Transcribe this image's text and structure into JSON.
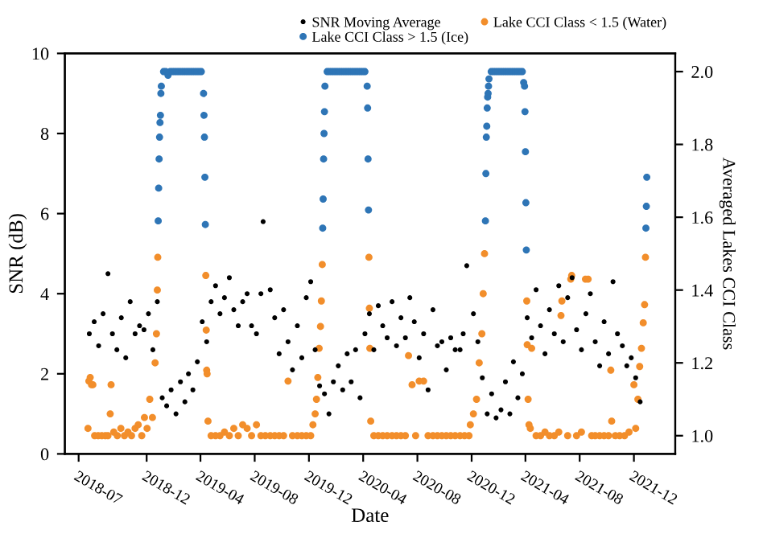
{
  "chart_data": {
    "type": "scatter",
    "xlabel": "Date",
    "ylabel": "SNR (dB)",
    "y2label": "Averaged Lakes CCI Class",
    "xlim": [
      "2018-05-31",
      "2022-03-04"
    ],
    "xticks": [
      {
        "value": "2018-07-01",
        "label": "2018-07"
      },
      {
        "value": "2018-12-01",
        "label": "2018-12"
      },
      {
        "value": "2019-04-01",
        "label": "2019-04"
      },
      {
        "value": "2019-08-01",
        "label": "2019-08"
      },
      {
        "value": "2019-12-01",
        "label": "2019-12"
      },
      {
        "value": "2020-04-01",
        "label": "2020-04"
      },
      {
        "value": "2020-08-01",
        "label": "2020-08"
      },
      {
        "value": "2020-12-01",
        "label": "2020-12"
      },
      {
        "value": "2021-04-01",
        "label": "2021-04"
      },
      {
        "value": "2021-08-01",
        "label": "2021-08"
      },
      {
        "value": "2021-12-01",
        "label": "2021-12"
      }
    ],
    "ylim": [
      0,
      10
    ],
    "yticks": [
      0,
      2,
      4,
      6,
      8,
      10
    ],
    "y2lim": [
      0.95,
      2.05
    ],
    "y2ticks": [
      {
        "value": 1.0,
        "label": "1.0"
      },
      {
        "value": 1.2,
        "label": "1.2"
      },
      {
        "value": 1.4,
        "label": "1.4"
      },
      {
        "value": 1.6,
        "label": "1.6"
      },
      {
        "value": 1.8,
        "label": "1.8"
      },
      {
        "value": 2.0,
        "label": "2.0"
      }
    ],
    "legend": "top right",
    "marker": "circle",
    "grid": false,
    "series": [
      {
        "name": "SNR Moving Average",
        "color": "#000000",
        "x": [
          "2018-07-25",
          "2018-08-05",
          "2018-08-15",
          "2018-08-25",
          "2018-09-05",
          "2018-09-15",
          "2018-09-25",
          "2018-10-05",
          "2018-10-15",
          "2018-10-25",
          "2018-11-05",
          "2018-11-15",
          "2018-11-25",
          "2018-12-05",
          "2018-12-15",
          "2018-12-25",
          "2019-01-05",
          "2019-01-15",
          "2019-01-25",
          "2019-02-05",
          "2019-02-15",
          "2019-02-25",
          "2019-03-05",
          "2019-03-15",
          "2019-03-25",
          "2019-04-05",
          "2019-04-15",
          "2019-04-25",
          "2019-05-05",
          "2019-05-15",
          "2019-05-25",
          "2019-06-05",
          "2019-06-15",
          "2019-06-25",
          "2019-07-05",
          "2019-07-15",
          "2019-07-25",
          "2019-08-05",
          "2019-08-15",
          "2019-08-20",
          "2019-09-05",
          "2019-09-15",
          "2019-09-25",
          "2019-10-05",
          "2019-10-15",
          "2019-10-25",
          "2019-11-05",
          "2019-11-15",
          "2019-11-25",
          "2019-12-05",
          "2019-12-15",
          "2019-12-25",
          "2020-01-05",
          "2020-01-15",
          "2020-01-25",
          "2020-02-05",
          "2020-02-15",
          "2020-02-25",
          "2020-03-05",
          "2020-03-15",
          "2020-03-25",
          "2020-04-05",
          "2020-04-15",
          "2020-04-25",
          "2020-05-05",
          "2020-05-15",
          "2020-05-25",
          "2020-06-05",
          "2020-06-15",
          "2020-06-25",
          "2020-07-05",
          "2020-07-15",
          "2020-07-25",
          "2020-08-05",
          "2020-08-15",
          "2020-08-25",
          "2020-09-05",
          "2020-09-15",
          "2020-09-25",
          "2020-10-05",
          "2020-10-15",
          "2020-10-25",
          "2020-11-05",
          "2020-11-12",
          "2020-11-20",
          "2020-12-05",
          "2020-12-15",
          "2020-12-25",
          "2021-01-05",
          "2021-01-15",
          "2021-01-25",
          "2021-02-05",
          "2021-02-15",
          "2021-02-25",
          "2021-03-05",
          "2021-03-15",
          "2021-03-25",
          "2021-04-05",
          "2021-04-15",
          "2021-04-25",
          "2021-05-05",
          "2021-05-15",
          "2021-05-25",
          "2021-06-05",
          "2021-06-15",
          "2021-06-25",
          "2021-07-05",
          "2021-07-15",
          "2021-07-25",
          "2021-08-05",
          "2021-08-15",
          "2021-08-25",
          "2021-09-05",
          "2021-09-15",
          "2021-09-25",
          "2021-10-05",
          "2021-10-15",
          "2021-10-25",
          "2021-11-05",
          "2021-11-15",
          "2021-11-25",
          "2021-12-05",
          "2021-12-15"
        ],
        "values": [
          3.0,
          3.3,
          2.7,
          3.5,
          4.5,
          3.0,
          2.6,
          3.4,
          2.4,
          3.8,
          3.0,
          3.2,
          3.1,
          3.5,
          2.6,
          3.8,
          1.4,
          1.2,
          1.6,
          1.0,
          1.8,
          1.3,
          2.0,
          1.6,
          2.3,
          3.3,
          2.8,
          3.8,
          4.2,
          3.5,
          3.9,
          4.4,
          3.6,
          3.2,
          3.8,
          4.0,
          3.2,
          3.0,
          4.0,
          5.8,
          4.1,
          3.4,
          2.5,
          3.6,
          2.8,
          2.1,
          3.2,
          2.4,
          3.9,
          4.3,
          2.6,
          1.7,
          1.5,
          1.0,
          1.8,
          2.2,
          1.6,
          2.5,
          1.8,
          2.6,
          1.4,
          3.0,
          3.5,
          2.6,
          3.7,
          3.2,
          2.9,
          3.8,
          2.7,
          3.4,
          2.9,
          3.9,
          3.3,
          2.4,
          3.0,
          1.6,
          3.6,
          2.7,
          2.8,
          2.1,
          2.9,
          2.6,
          2.6,
          3.0,
          4.7,
          3.5,
          2.8,
          1.9,
          1.0,
          1.5,
          0.9,
          1.1,
          1.8,
          1.0,
          2.3,
          1.4,
          2.0,
          3.4,
          2.9,
          4.1,
          3.2,
          2.5,
          3.6,
          3.0,
          4.2,
          2.8,
          3.9,
          4.4,
          3.1,
          2.6,
          3.5,
          4.0,
          2.8,
          2.2,
          3.3,
          2.5,
          4.3,
          3.0,
          2.7,
          2.2,
          2.4,
          1.9,
          1.3
        ]
      },
      {
        "name": "Lake CCI Class > 1.5 (Ice)",
        "color": "#2e75b6",
        "axis": "y2",
        "x": [
          "2018-12-27",
          "2018-12-28",
          "2018-12-29",
          "2018-12-30",
          "2018-12-31",
          "2019-01-01",
          "2019-01-02",
          "2019-01-03",
          "2019-01-08",
          "2019-01-13",
          "2019-01-18",
          "2019-01-23",
          "2019-01-28",
          "2019-02-02",
          "2019-02-07",
          "2019-02-12",
          "2019-02-17",
          "2019-02-22",
          "2019-02-27",
          "2019-03-04",
          "2019-03-09",
          "2019-03-14",
          "2019-03-19",
          "2019-03-24",
          "2019-03-29",
          "2019-04-03",
          "2019-04-08",
          "2019-04-09",
          "2019-04-10",
          "2019-04-11",
          "2019-04-12",
          "2020-01-01",
          "2020-01-02",
          "2020-01-03",
          "2020-01-04",
          "2020-01-05",
          "2020-01-06",
          "2020-01-11",
          "2020-01-16",
          "2020-01-21",
          "2020-01-26",
          "2020-01-31",
          "2020-02-05",
          "2020-02-10",
          "2020-02-15",
          "2020-02-20",
          "2020-02-25",
          "2020-03-01",
          "2020-03-06",
          "2020-03-11",
          "2020-03-16",
          "2020-03-21",
          "2020-03-26",
          "2020-03-31",
          "2020-04-05",
          "2020-04-10",
          "2020-04-11",
          "2020-04-12",
          "2020-04-13",
          "2021-01-01",
          "2021-01-02",
          "2021-01-03",
          "2021-01-04",
          "2021-01-05",
          "2021-01-06",
          "2021-01-07",
          "2021-01-08",
          "2021-01-09",
          "2021-01-14",
          "2021-01-19",
          "2021-01-24",
          "2021-01-29",
          "2021-02-03",
          "2021-02-08",
          "2021-02-13",
          "2021-02-18",
          "2021-02-23",
          "2021-02-28",
          "2021-03-05",
          "2021-03-10",
          "2021-03-15",
          "2021-03-20",
          "2021-03-25",
          "2021-03-28",
          "2021-03-30",
          "2021-03-31",
          "2021-04-01",
          "2021-04-02",
          "2021-04-03",
          "2021-12-28",
          "2021-12-29",
          "2021-12-30"
        ],
        "values": [
          1.59,
          1.68,
          1.76,
          1.82,
          1.86,
          1.88,
          1.94,
          1.96,
          2.0,
          2.0,
          1.99,
          2.0,
          2.0,
          2.0,
          2.0,
          2.0,
          2.0,
          2.0,
          2.0,
          2.0,
          2.0,
          2.0,
          2.0,
          2.0,
          2.0,
          2.0,
          1.94,
          1.88,
          1.82,
          1.71,
          1.58,
          1.57,
          1.65,
          1.76,
          1.83,
          1.89,
          1.96,
          2.0,
          2.0,
          2.0,
          2.0,
          2.0,
          2.0,
          2.0,
          2.0,
          2.0,
          2.0,
          2.0,
          2.0,
          2.0,
          2.0,
          2.0,
          2.0,
          2.0,
          2.0,
          1.96,
          1.9,
          1.76,
          1.62,
          1.59,
          1.72,
          1.82,
          1.85,
          1.9,
          1.93,
          1.94,
          1.96,
          1.98,
          2.0,
          2.0,
          2.0,
          2.0,
          2.0,
          2.0,
          2.0,
          2.0,
          2.0,
          2.0,
          2.0,
          2.0,
          2.0,
          2.0,
          2.0,
          1.97,
          1.96,
          1.89,
          1.78,
          1.64,
          1.51,
          1.57,
          1.63,
          1.71
        ]
      },
      {
        "name": "Lake CCI Class < 1.5 (Water)",
        "color": "#f28e2b",
        "axis": "y2",
        "x": [
          "2018-07-22",
          "2018-07-24",
          "2018-07-27",
          "2018-07-30",
          "2018-08-02",
          "2018-08-06",
          "2018-08-14",
          "2018-08-22",
          "2018-08-30",
          "2018-09-05",
          "2018-09-10",
          "2018-09-12",
          "2018-09-18",
          "2018-09-26",
          "2018-10-04",
          "2018-10-12",
          "2018-10-20",
          "2018-10-28",
          "2018-11-05",
          "2018-11-12",
          "2018-11-20",
          "2018-11-26",
          "2018-12-02",
          "2018-12-08",
          "2018-12-14",
          "2018-12-20",
          "2018-12-23",
          "2018-12-25",
          "2018-12-26",
          "2019-04-13",
          "2019-04-14",
          "2019-04-15",
          "2019-04-16",
          "2019-04-18",
          "2019-04-25",
          "2019-05-05",
          "2019-05-15",
          "2019-05-25",
          "2019-06-05",
          "2019-06-15",
          "2019-06-25",
          "2019-07-05",
          "2019-07-15",
          "2019-07-25",
          "2019-08-05",
          "2019-08-15",
          "2019-08-25",
          "2019-09-05",
          "2019-09-15",
          "2019-09-25",
          "2019-10-05",
          "2019-10-15",
          "2019-10-25",
          "2019-11-05",
          "2019-11-15",
          "2019-11-25",
          "2019-12-05",
          "2019-12-10",
          "2019-12-15",
          "2019-12-18",
          "2019-12-21",
          "2019-12-24",
          "2019-12-27",
          "2019-12-29",
          "2019-12-31",
          "2020-04-14",
          "2020-04-15",
          "2020-04-16",
          "2020-04-18",
          "2020-04-25",
          "2020-05-05",
          "2020-05-15",
          "2020-05-25",
          "2020-06-05",
          "2020-06-15",
          "2020-06-25",
          "2020-07-05",
          "2020-07-12",
          "2020-07-20",
          "2020-07-28",
          "2020-08-05",
          "2020-08-15",
          "2020-08-25",
          "2020-09-05",
          "2020-09-15",
          "2020-09-25",
          "2020-10-05",
          "2020-10-15",
          "2020-10-25",
          "2020-11-05",
          "2020-11-15",
          "2020-11-25",
          "2020-11-28",
          "2020-12-05",
          "2020-12-12",
          "2020-12-18",
          "2020-12-24",
          "2020-12-27",
          "2020-12-30",
          "2021-04-04",
          "2021-04-05",
          "2021-04-07",
          "2021-04-09",
          "2021-04-12",
          "2021-04-15",
          "2021-04-25",
          "2021-05-05",
          "2021-05-15",
          "2021-05-25",
          "2021-06-05",
          "2021-06-15",
          "2021-06-20",
          "2021-06-22",
          "2021-07-05",
          "2021-07-12",
          "2021-07-14",
          "2021-07-25",
          "2021-08-05",
          "2021-08-14",
          "2021-08-20",
          "2021-08-28",
          "2021-09-05",
          "2021-09-15",
          "2021-09-25",
          "2021-10-05",
          "2021-10-10",
          "2021-10-12",
          "2021-10-20",
          "2021-10-30",
          "2021-11-10",
          "2021-11-20",
          "2021-12-01",
          "2021-12-05",
          "2021-12-10",
          "2021-12-14",
          "2021-12-18",
          "2021-12-22",
          "2021-12-25",
          "2021-12-27"
        ],
        "values": [
          1.02,
          1.15,
          1.16,
          1.14,
          1.14,
          1.0,
          1.0,
          1.0,
          1.0,
          1.0,
          1.06,
          1.14,
          1.01,
          1.0,
          1.02,
          1.0,
          1.01,
          1.0,
          1.02,
          1.03,
          1.0,
          1.05,
          1.02,
          1.1,
          1.05,
          1.2,
          1.28,
          1.4,
          1.49,
          1.44,
          1.29,
          1.18,
          1.17,
          1.04,
          1.0,
          1.0,
          1.0,
          1.01,
          1.0,
          1.02,
          1.0,
          1.03,
          1.02,
          1.0,
          1.03,
          1.0,
          1.0,
          1.0,
          1.0,
          1.0,
          1.0,
          1.15,
          1.0,
          1.0,
          1.0,
          1.0,
          1.0,
          1.03,
          1.06,
          1.1,
          1.16,
          1.24,
          1.3,
          1.37,
          1.47,
          1.49,
          1.35,
          1.24,
          1.04,
          1.0,
          1.0,
          1.0,
          1.0,
          1.0,
          1.0,
          1.0,
          1.0,
          1.22,
          1.14,
          1.0,
          1.15,
          1.15,
          1.0,
          1.0,
          1.0,
          1.0,
          1.0,
          1.0,
          1.0,
          1.0,
          1.0,
          1.0,
          1.03,
          1.06,
          1.1,
          1.2,
          1.28,
          1.39,
          1.5,
          1.37,
          1.25,
          1.1,
          1.03,
          1.02,
          1.24,
          1.0,
          1.0,
          1.01,
          1.0,
          1.0,
          1.01,
          1.33,
          1.37,
          1.0,
          1.43,
          1.44,
          1.0,
          1.01,
          1.43,
          1.43,
          1.0,
          1.0,
          1.0,
          1.0,
          1.0,
          1.18,
          1.04,
          1.0,
          1.0,
          1.0,
          1.01,
          1.14,
          1.02,
          1.1,
          1.19,
          1.24,
          1.31,
          1.36,
          1.49
        ]
      }
    ]
  }
}
